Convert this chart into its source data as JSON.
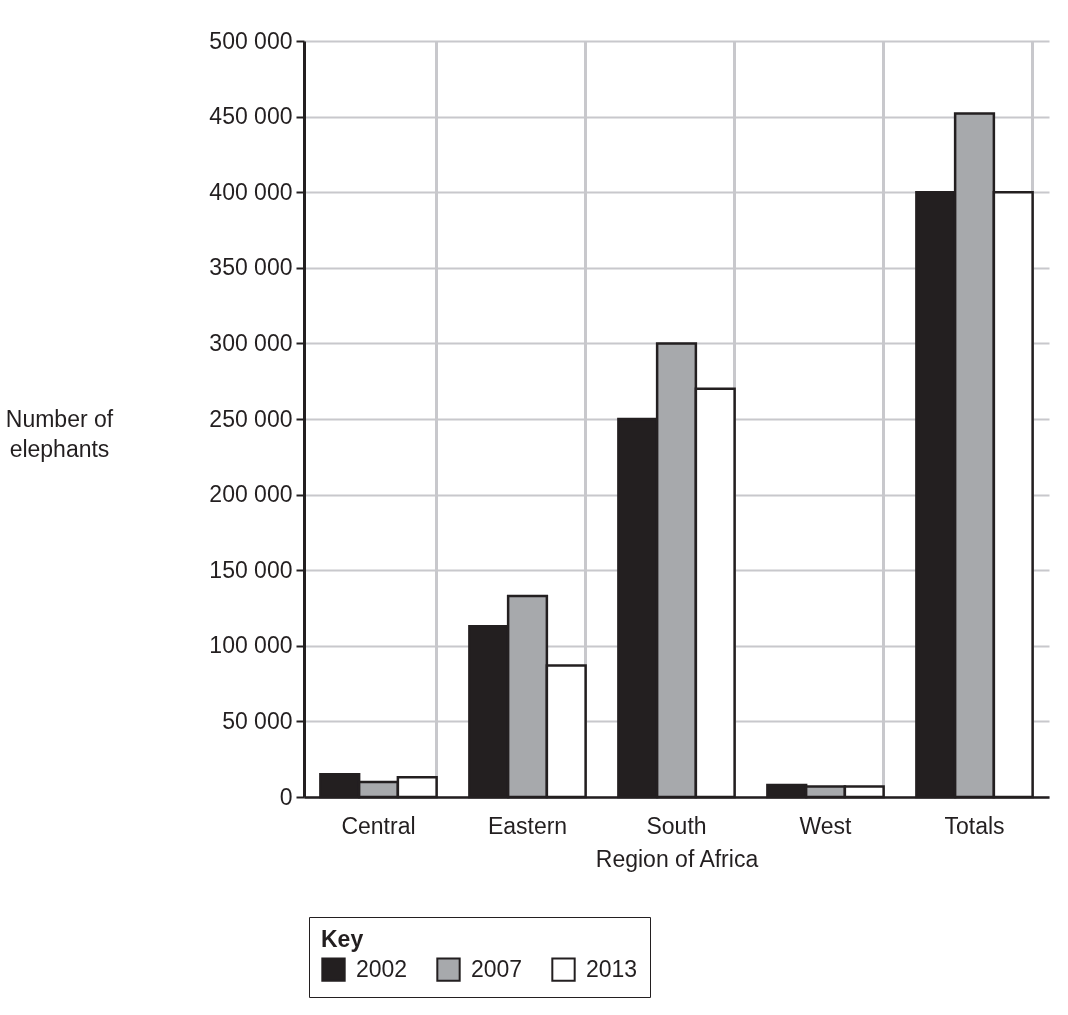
{
  "chart_data": {
    "type": "bar",
    "xlabel": "Region of Africa",
    "ylabel": "Number of elephants",
    "legend_title": "Key",
    "categories": [
      "Central",
      "Eastern",
      "South",
      "West",
      "Totals"
    ],
    "series": [
      {
        "name": "2002",
        "color": "#231f20",
        "values": [
          15000,
          113000,
          250000,
          8000,
          400000
        ]
      },
      {
        "name": "2007",
        "color": "#a7a9ac",
        "values": [
          10000,
          133000,
          300000,
          7000,
          452000
        ]
      },
      {
        "name": "2013",
        "color": "#ffffff",
        "values": [
          13000,
          87000,
          270000,
          7000,
          400000
        ]
      }
    ],
    "ylim": [
      0,
      500000
    ],
    "yticks": [
      {
        "value": 0,
        "label": "0"
      },
      {
        "value": 50000,
        "label": "50 000"
      },
      {
        "value": 100000,
        "label": "100 000"
      },
      {
        "value": 150000,
        "label": "150 000"
      },
      {
        "value": 200000,
        "label": "200 000"
      },
      {
        "value": 250000,
        "label": "250 000"
      },
      {
        "value": 300000,
        "label": "300 000"
      },
      {
        "value": 350000,
        "label": "350 000"
      },
      {
        "value": 400000,
        "label": "400 000"
      },
      {
        "value": 450000,
        "label": "450 000"
      },
      {
        "value": 500000,
        "label": "500 000"
      }
    ],
    "grid": true,
    "legend": "bottom"
  }
}
